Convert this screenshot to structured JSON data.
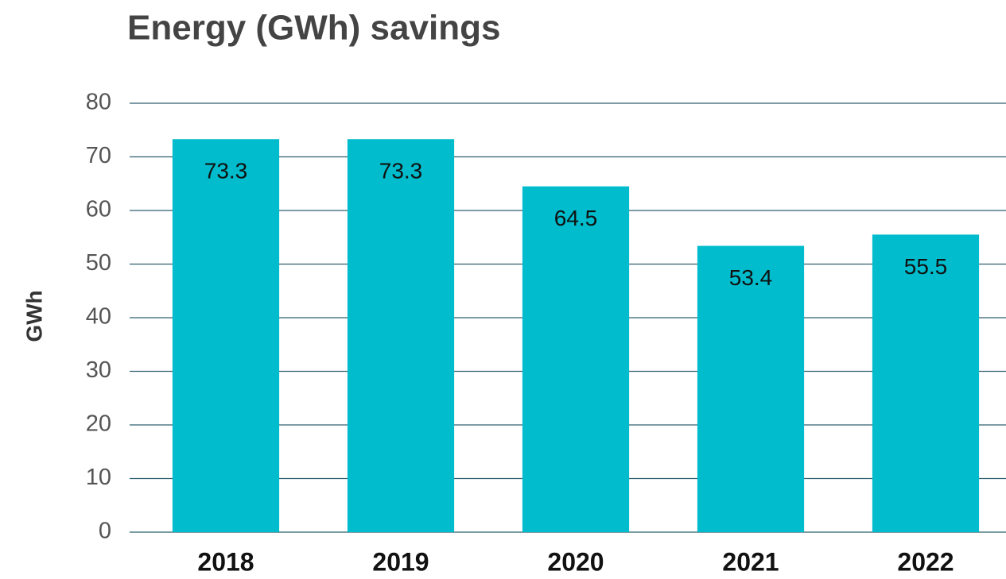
{
  "chart_data": {
    "type": "bar",
    "title": "Energy (GWh) savings",
    "ylabel": "GWh",
    "categories": [
      "2018",
      "2019",
      "2020",
      "2021",
      "2022"
    ],
    "values": [
      73.3,
      73.3,
      64.5,
      53.4,
      55.5
    ],
    "color": "#00bccc",
    "ylim": [
      0,
      80
    ],
    "yticks": [
      0,
      10,
      20,
      30,
      40,
      50,
      60,
      70,
      80
    ],
    "grid": true
  }
}
